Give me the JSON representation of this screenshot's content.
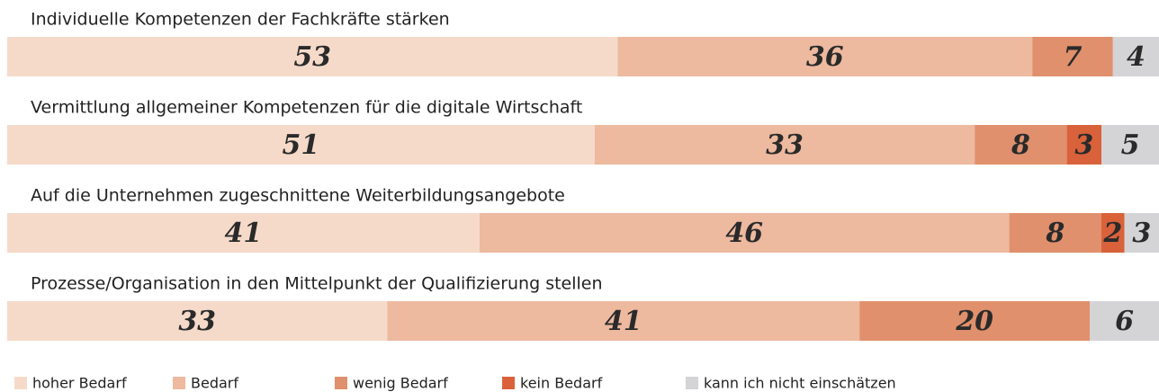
{
  "chart_data": {
    "type": "stacked-bar",
    "categories": [
      "Individuelle Kompetenzen der Fachkräfte stärken",
      "Vermittlung allgemeiner Kompetenzen für die digitale Wirtschaft",
      "Auf die Unternehmen zugeschnittene Weiterbildungsangebote",
      "Prozesse/Organisation in den Mittelpunkt der Qualifizierung stellen"
    ],
    "series": [
      {
        "name": "hoher Bedarf",
        "color": "#f6dac9",
        "values": [
          53,
          51,
          41,
          33
        ]
      },
      {
        "name": "Bedarf",
        "color": "#edb99f",
        "values": [
          36,
          33,
          46,
          41
        ]
      },
      {
        "name": "wenig Bedarf",
        "color": "#e0906c",
        "values": [
          7,
          8,
          8,
          20
        ]
      },
      {
        "name": "kein Bedarf",
        "color": "#d9623b",
        "values": [
          null,
          3,
          2,
          null
        ]
      },
      {
        "name": "kann ich nicht einschätzen",
        "color": "#d4d4d6",
        "values": [
          4,
          5,
          3,
          6
        ]
      }
    ]
  }
}
